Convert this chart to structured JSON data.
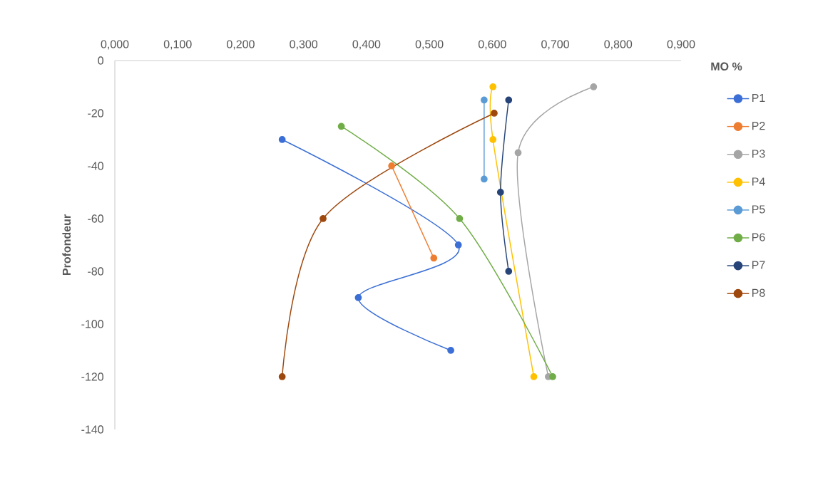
{
  "chart_data": {
    "type": "line",
    "xlabel": "MO %",
    "ylabel": "Profondeur",
    "xlim": [
      0,
      0.9
    ],
    "ylim": [
      -140,
      0
    ],
    "xticks": [
      {
        "value": 0,
        "label": "0,000"
      },
      {
        "value": 0.1,
        "label": "0,100"
      },
      {
        "value": 0.2,
        "label": "0,200"
      },
      {
        "value": 0.3,
        "label": "0,300"
      },
      {
        "value": 0.4,
        "label": "0,400"
      },
      {
        "value": 0.5,
        "label": "0,500"
      },
      {
        "value": 0.6,
        "label": "0,600"
      },
      {
        "value": 0.7,
        "label": "0,700"
      },
      {
        "value": 0.8,
        "label": "0,800"
      },
      {
        "value": 0.9,
        "label": "0,900"
      }
    ],
    "yticks": [
      0,
      -20,
      -40,
      -60,
      -80,
      -100,
      -120,
      -140
    ],
    "grid": false,
    "legend": "right",
    "marker": "circle",
    "line_style": "solid",
    "series": [
      {
        "name": "P1",
        "color": "#3b6fd6",
        "x": [
          0.266,
          0.546,
          0.387,
          0.534
        ],
        "values": [
          -30,
          -70,
          -90,
          -110
        ]
      },
      {
        "name": "P2",
        "color": "#ed7d31",
        "x": [
          0.44,
          0.507
        ],
        "values": [
          -40,
          -75
        ]
      },
      {
        "name": "P3",
        "color": "#a5a5a5",
        "x": [
          0.761,
          0.641,
          0.689
        ],
        "values": [
          -10,
          -35,
          -120
        ]
      },
      {
        "name": "P4",
        "color": "#ffc000",
        "x": [
          0.601,
          0.601,
          0.666
        ],
        "values": [
          -10,
          -30,
          -120
        ]
      },
      {
        "name": "P5",
        "color": "#5b9bd5",
        "x": [
          0.587,
          0.587
        ],
        "values": [
          -15,
          -45
        ]
      },
      {
        "name": "P6",
        "color": "#70ad47",
        "x": [
          0.36,
          0.548,
          0.696
        ],
        "values": [
          -25,
          -60,
          -120
        ]
      },
      {
        "name": "P7",
        "color": "#264478",
        "x": [
          0.626,
          0.613,
          0.626
        ],
        "values": [
          -15,
          -50,
          -80
        ]
      },
      {
        "name": "P8",
        "color": "#9e480e",
        "x": [
          0.603,
          0.331,
          0.266
        ],
        "values": [
          -20,
          -60,
          -120
        ]
      }
    ]
  }
}
